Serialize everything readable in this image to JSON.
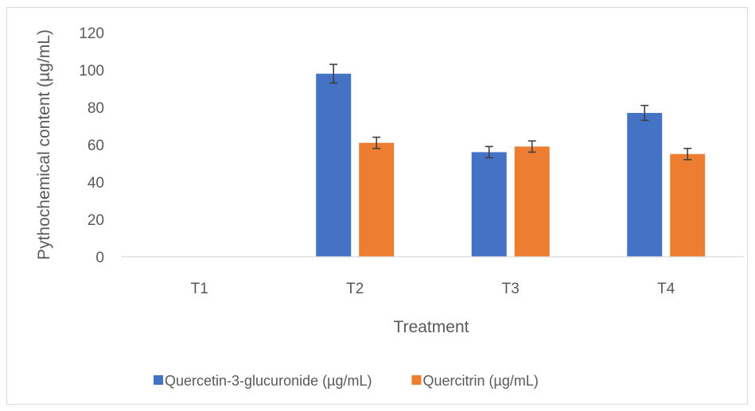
{
  "chart_data": {
    "type": "bar",
    "title": "",
    "xlabel": "Treatment",
    "ylabel": "Pythochemical content (µg/mL)",
    "categories": [
      "T1",
      "T2",
      "T3",
      "T4"
    ],
    "ylim": [
      0,
      120
    ],
    "yticks": [
      0,
      20,
      40,
      60,
      80,
      100,
      120
    ],
    "grid": false,
    "legend_position": "bottom",
    "series": [
      {
        "name": "Quercetin-3-glucuronide (µg/mL)",
        "color": "#4472c4",
        "values": [
          0,
          98,
          56,
          77
        ],
        "errors": [
          0,
          5,
          3,
          4
        ]
      },
      {
        "name": "Quercitrin (µg/mL)",
        "color": "#ed7d31",
        "values": [
          0,
          61,
          59,
          55
        ],
        "errors": [
          0,
          3,
          3,
          3
        ]
      }
    ]
  }
}
